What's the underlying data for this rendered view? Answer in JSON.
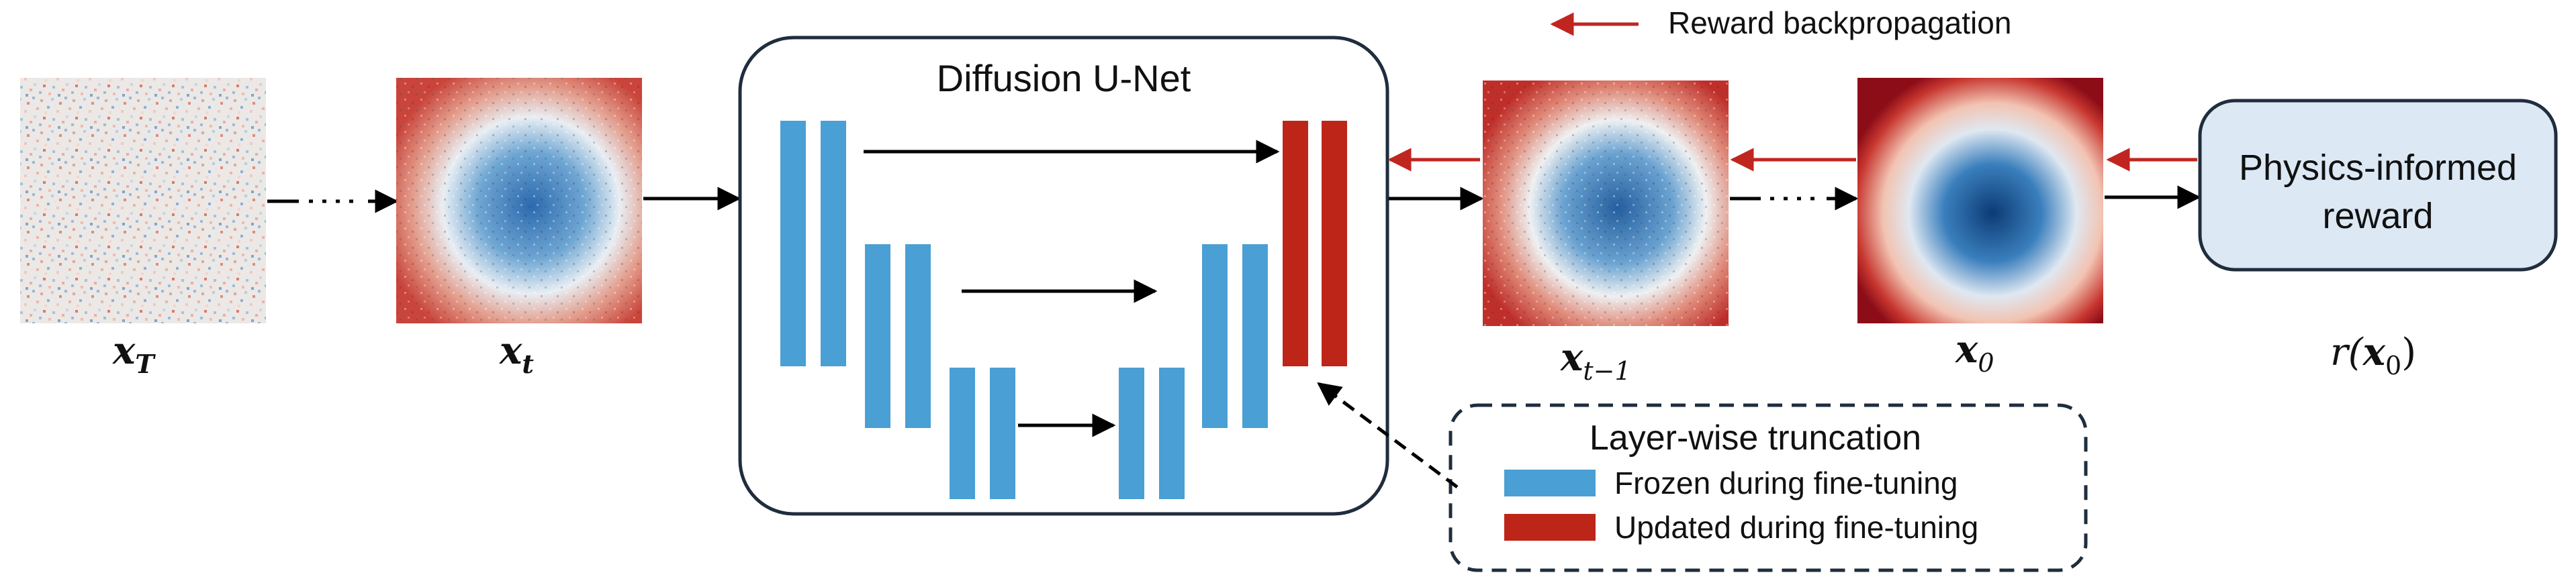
{
  "legend_top": {
    "label": "Reward backpropagation",
    "color": "#c0261f"
  },
  "unet": {
    "title": "Diffusion U-Net"
  },
  "reward_box": {
    "line1": "Physics-informed",
    "line2": "reward",
    "fill": "#dce8f4"
  },
  "images": {
    "x_T": {
      "base": "x",
      "sub": "T"
    },
    "x_t": {
      "base": "x",
      "sub": "t"
    },
    "x_t_minus_1": {
      "base": "x",
      "sub": "t−1"
    },
    "x_0": {
      "base": "x",
      "sub": "0"
    }
  },
  "reward_label": {
    "text": "r(",
    "base": "x",
    "sub": "0",
    "close": ")"
  },
  "truncation": {
    "title": "Layer-wise truncation",
    "frozen_label": "Frozen during fine-tuning",
    "updated_label": "Updated during fine-tuning"
  },
  "colors": {
    "frozen": "#4a9fd4",
    "updated": "#be2519",
    "arrow": "#000000",
    "backprop": "#c0261f"
  }
}
